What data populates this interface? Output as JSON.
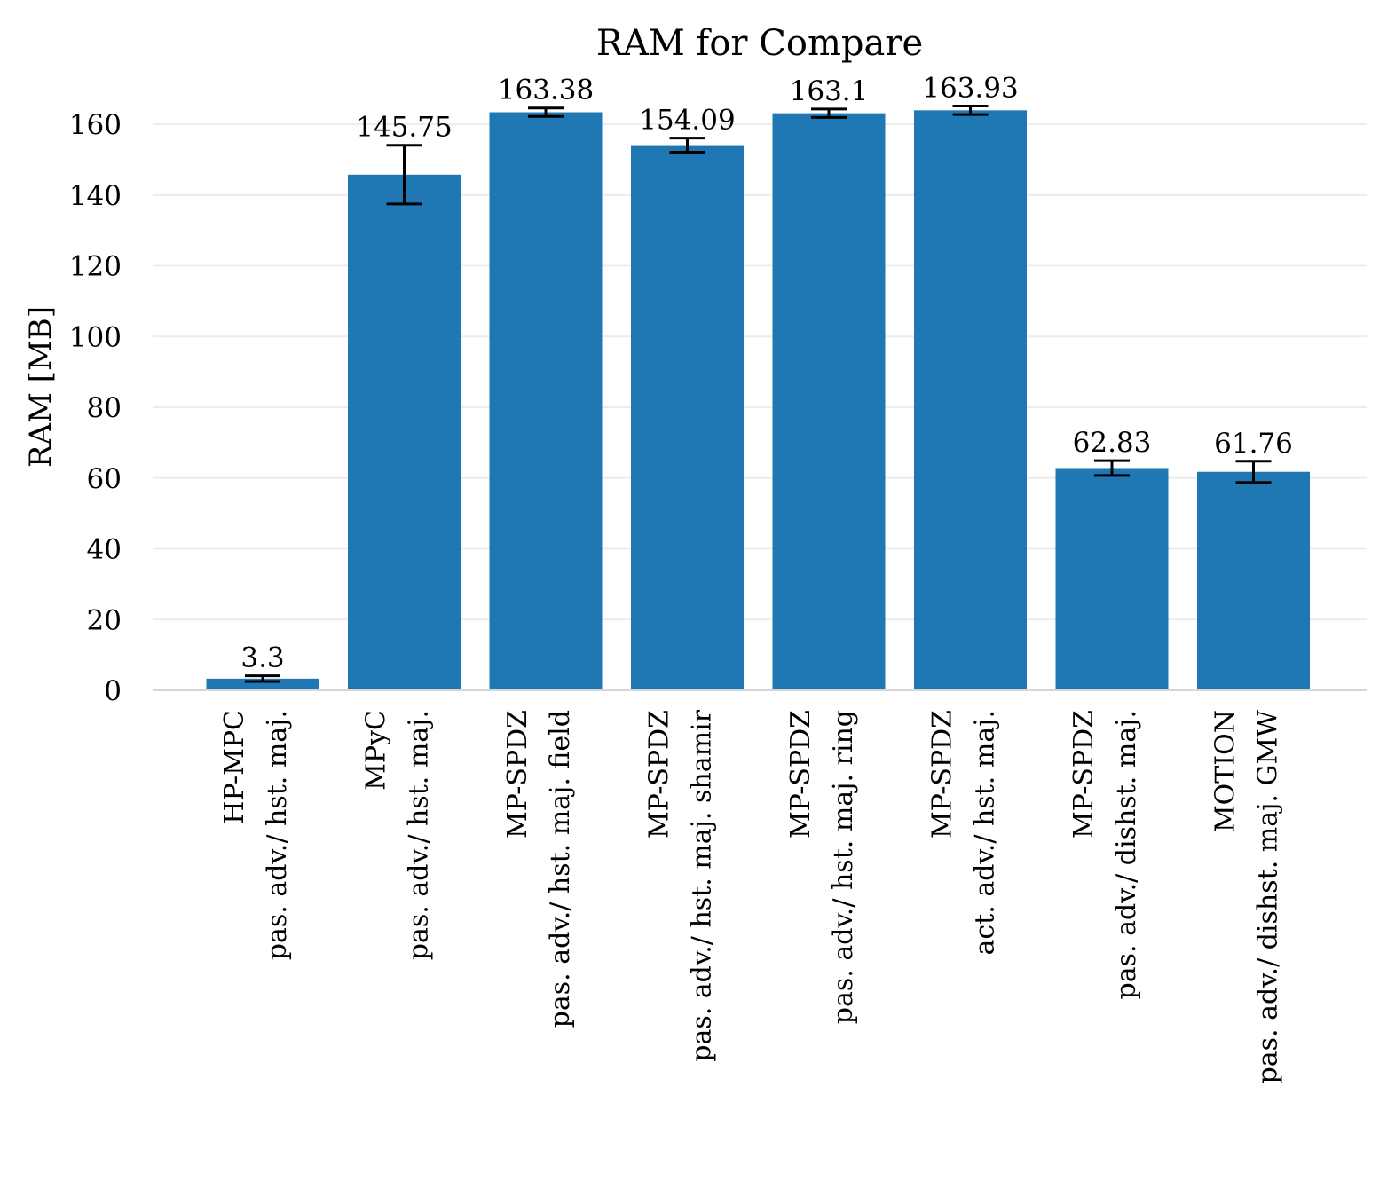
{
  "chart_data": {
    "type": "bar",
    "title": "RAM for Compare",
    "ylabel": "RAM [MB]",
    "xlabel": "",
    "ylim": [
      0,
      165
    ],
    "yticks": [
      0,
      20,
      40,
      60,
      80,
      100,
      120,
      140,
      160
    ],
    "grid": true,
    "colors": {
      "bar": "#1f77b4",
      "error_bar": "#000000"
    },
    "categories": [
      [
        "HP-MPC",
        "pas. adv./ hst. maj."
      ],
      [
        "MPyC",
        "pas. adv./ hst. maj."
      ],
      [
        "MP-SPDZ",
        "pas. adv./ hst. maj. field"
      ],
      [
        "MP-SPDZ",
        "pas. adv./ hst. maj. shamir"
      ],
      [
        "MP-SPDZ",
        "pas. adv./ hst. maj. ring"
      ],
      [
        "MP-SPDZ",
        "act. adv./ hst. maj."
      ],
      [
        "MP-SPDZ",
        "pas. adv./ dishst. maj."
      ],
      [
        "MOTION",
        "pas. adv./ dishst. maj. GMW"
      ]
    ],
    "values": [
      3.3,
      145.75,
      163.38,
      154.09,
      163.1,
      163.93,
      62.83,
      61.76
    ],
    "value_labels": [
      "3.3",
      "145.75",
      "163.38",
      "154.09",
      "163.1",
      "163.93",
      "62.83",
      "61.76"
    ],
    "errors": [
      0.8,
      8.3,
      1.2,
      2.0,
      1.2,
      1.2,
      2.1,
      3.0
    ]
  }
}
